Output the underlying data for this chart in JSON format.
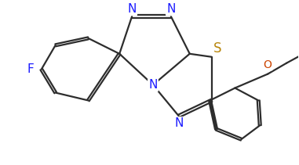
{
  "bg_color": "#ffffff",
  "bond_color": "#2d2d2d",
  "atom_colors": {
    "N": "#1a1aff",
    "S": "#b8860b",
    "F": "#1a1aff",
    "O": "#cc4400"
  },
  "bond_width": 1.6,
  "font_size_atom": 10,
  "figw": 3.81,
  "figh": 2.11,
  "dpi": 100
}
